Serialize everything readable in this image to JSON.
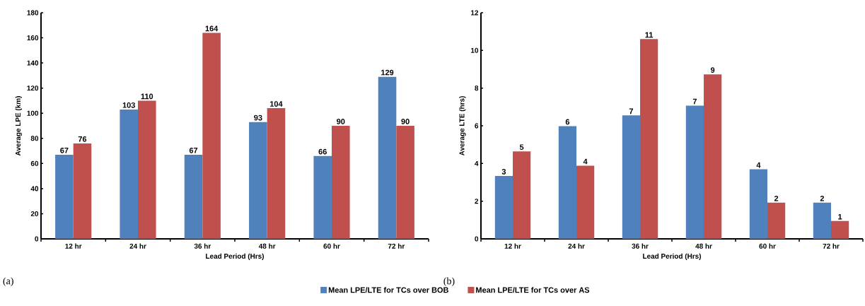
{
  "chart_data": [
    {
      "type": "bar",
      "xlabel": "Lead Period (Hrs)",
      "ylabel": "Average LPE (km)",
      "categories": [
        "12 hr",
        "24 hr",
        "36 hr",
        "48 hr",
        "60 hr",
        "72 hr"
      ],
      "series": [
        {
          "name": "Mean LPE/LTE for TCs over BOB",
          "color": "#4f81bd",
          "values": [
            67,
            103,
            67,
            93,
            66,
            129
          ]
        },
        {
          "name": "Mean LPE/LTE for TCs over AS",
          "color": "#c0504d",
          "values": [
            76,
            110,
            164,
            104,
            90,
            90
          ]
        }
      ],
      "ylim": [
        0,
        180
      ],
      "yticks": [
        0,
        20,
        40,
        60,
        80,
        100,
        120,
        140,
        160,
        180
      ],
      "data_labels": true,
      "legend": "bottom",
      "grid": false,
      "annotations": [
        "(a)"
      ]
    },
    {
      "type": "bar",
      "xlabel": "Lead Period (Hrs)",
      "ylabel": "Average LTE (hrs)",
      "categories": [
        "12 hr",
        "24 hr",
        "36 hr",
        "48 hr",
        "60 hr",
        "72 hr"
      ],
      "series": [
        {
          "color": "#4f81bd",
          "values": [
            3.34,
            5.98,
            6.55,
            7.07,
            3.69,
            1.92
          ],
          "value_labels": [
            "3",
            "6",
            "7",
            "7",
            "4",
            "2"
          ]
        },
        {
          "color": "#c0504d",
          "values": [
            4.64,
            3.88,
            10.6,
            8.73,
            1.92,
            0.95
          ],
          "value_labels": [
            "5",
            "4",
            "11",
            "9",
            "2",
            "1"
          ]
        }
      ],
      "ylim": [
        0,
        12
      ],
      "yticks": [
        0,
        2,
        4,
        6,
        8,
        10,
        12
      ],
      "grid": false,
      "annotations": [
        "(b)"
      ]
    }
  ]
}
